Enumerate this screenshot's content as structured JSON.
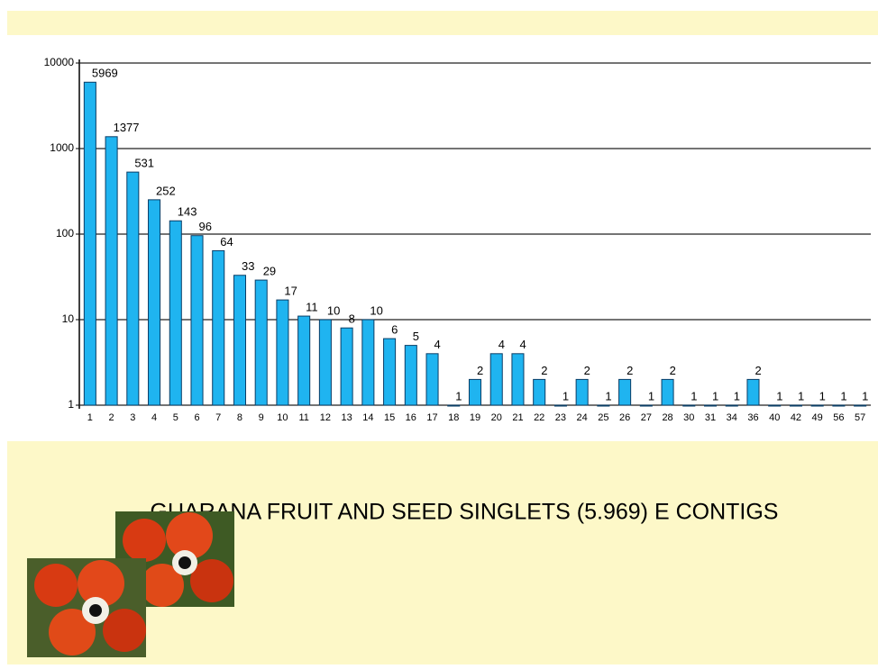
{
  "chart_data": {
    "type": "bar",
    "title": "GUARANA FRUIT AND SEED SINGLETS (5.969) E CONTIGS",
    "categories": [
      "1",
      "2",
      "3",
      "4",
      "5",
      "6",
      "7",
      "8",
      "9",
      "10",
      "11",
      "12",
      "13",
      "14",
      "15",
      "16",
      "17",
      "18",
      "19",
      "20",
      "21",
      "22",
      "23",
      "24",
      "25",
      "26",
      "27",
      "28",
      "30",
      "31",
      "34",
      "36",
      "40",
      "42",
      "49",
      "56",
      "57"
    ],
    "values": [
      5969,
      1377,
      531,
      252,
      143,
      96,
      64,
      33,
      29,
      17,
      11,
      10,
      8,
      10,
      6,
      5,
      4,
      1,
      2,
      4,
      4,
      2,
      1,
      2,
      1,
      2,
      1,
      2,
      1,
      1,
      1,
      2,
      1,
      1,
      1,
      1,
      1
    ],
    "color": "#1fb4f0",
    "log_scale": true,
    "ylim": [
      1,
      10000
    ],
    "yticks": [
      1,
      10,
      100,
      1000,
      10000
    ],
    "grid": true
  }
}
